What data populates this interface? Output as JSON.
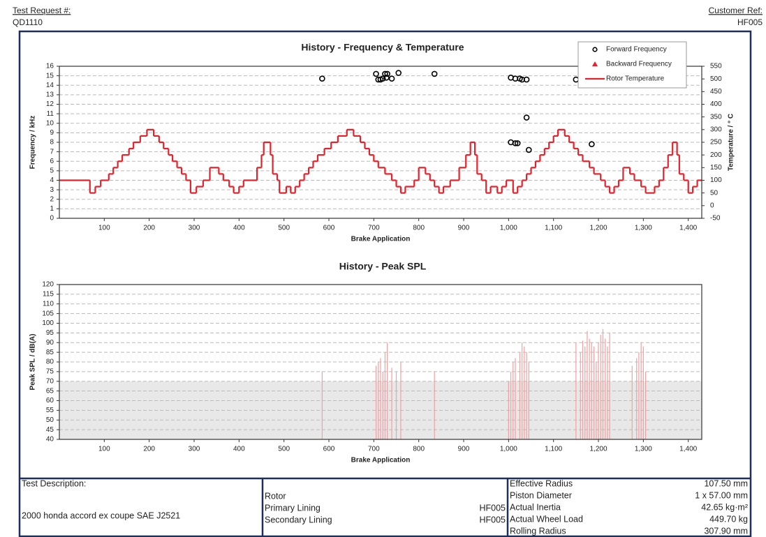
{
  "header": {
    "test_request_label": "Test Request #:",
    "test_request": "QD1110",
    "customer_ref_label": "Customer Ref:",
    "customer_ref": "HF005"
  },
  "chart_data": [
    {
      "type": "scatter",
      "title": "History - Frequency & Temperature",
      "x_label": "Brake Application",
      "y_label": "Frequency / kHz",
      "y2_label": "Temperature / ° C",
      "xlim": [
        0,
        1430
      ],
      "xticks": [
        100,
        200,
        300,
        400,
        500,
        600,
        700,
        800,
        900,
        {
          "value": 1000,
          "label": "1,000"
        },
        {
          "value": 1100,
          "label": "1,100"
        },
        {
          "value": 1200,
          "label": "1,200"
        },
        {
          "value": 1300,
          "label": "1,300"
        },
        {
          "value": 1400,
          "label": "1,400"
        }
      ],
      "ylim": [
        0,
        16
      ],
      "yticks": [
        0,
        1,
        2,
        3,
        4,
        5,
        6,
        7,
        8,
        9,
        10,
        11,
        12,
        13,
        14,
        15,
        16
      ],
      "y2lim": [
        -50,
        550
      ],
      "y2ticks": [
        -50,
        0,
        50,
        100,
        150,
        200,
        250,
        300,
        350,
        400,
        450,
        500,
        550
      ],
      "grid": true,
      "legend": "top-right",
      "series": [
        {
          "name": "Forward Frequency",
          "color": "#000000",
          "marker": "circle",
          "x": [
            585,
            705,
            710,
            715,
            720,
            725,
            728,
            730,
            740,
            755,
            835,
            1005,
            1015,
            1025,
            1030,
            1040,
            1150,
            1040,
            1005,
            1015,
            1020,
            1045,
            1185
          ],
          "values": [
            14.7,
            15.2,
            14.6,
            14.6,
            14.7,
            15.2,
            14.8,
            15.2,
            14.7,
            15.3,
            15.2,
            14.8,
            14.7,
            14.7,
            14.6,
            14.6,
            14.6,
            10.6,
            8.0,
            7.9,
            7.9,
            7.2,
            7.8
          ]
        },
        {
          "name": "Backward Frequency",
          "color": "#e8202a",
          "marker": "triangle",
          "x": [],
          "values": []
        },
        {
          "name": "Rotor Temperature",
          "color": "#e8202a",
          "marker": "step",
          "axis": "y2",
          "x": [
            0,
            68,
            80,
            92,
            110,
            120,
            130,
            140,
            155,
            165,
            180,
            195,
            210,
            222,
            232,
            243,
            252,
            262,
            272,
            282,
            292,
            305,
            320,
            335,
            355,
            365,
            378,
            388,
            400,
            410,
            440,
            450,
            455,
            470,
            475,
            485,
            490,
            505,
            515,
            525,
            535,
            545,
            555,
            565,
            575,
            590,
            605,
            620,
            640,
            655,
            670,
            680,
            690,
            700,
            710,
            725,
            740,
            750,
            760,
            770,
            790,
            800,
            815,
            825,
            835,
            845,
            855,
            870,
            890,
            905,
            915,
            925,
            930,
            940,
            950,
            960,
            975,
            985,
            995,
            1010,
            1020,
            1030,
            1040,
            1050,
            1060,
            1070,
            1080,
            1090,
            1100,
            1110,
            1125,
            1135,
            1145,
            1155,
            1165,
            1180,
            1190,
            1205,
            1215,
            1225,
            1235,
            1245,
            1255,
            1270,
            1280,
            1295,
            1305,
            1325,
            1335,
            1345,
            1355,
            1365,
            1375,
            1380,
            1390,
            1400,
            1410,
            1420
          ],
          "values": [
            100,
            50,
            75,
            100,
            125,
            150,
            175,
            200,
            225,
            250,
            275,
            300,
            275,
            250,
            225,
            200,
            175,
            150,
            125,
            100,
            50,
            75,
            100,
            150,
            125,
            100,
            75,
            50,
            75,
            100,
            150,
            200,
            250,
            200,
            125,
            100,
            50,
            75,
            50,
            75,
            100,
            125,
            150,
            175,
            200,
            225,
            250,
            275,
            300,
            275,
            250,
            225,
            200,
            175,
            150,
            125,
            100,
            75,
            50,
            75,
            100,
            150,
            125,
            100,
            75,
            50,
            75,
            100,
            150,
            200,
            250,
            200,
            125,
            100,
            50,
            75,
            50,
            75,
            100,
            50,
            75,
            100,
            125,
            150,
            175,
            200,
            225,
            250,
            275,
            300,
            275,
            250,
            225,
            200,
            175,
            150,
            125,
            100,
            75,
            50,
            75,
            100,
            150,
            125,
            100,
            75,
            50,
            75,
            100,
            150,
            200,
            250,
            200,
            125,
            100,
            50,
            75,
            100
          ]
        }
      ]
    },
    {
      "type": "bar",
      "title": "History - Peak SPL",
      "x_label": "Brake Application",
      "y_label": "Peak SPL / dB(A)",
      "xlim": [
        0,
        1430
      ],
      "xticks": [
        100,
        200,
        300,
        400,
        500,
        600,
        700,
        800,
        900,
        {
          "value": 1000,
          "label": "1,000"
        },
        {
          "value": 1100,
          "label": "1,100"
        },
        {
          "value": 1200,
          "label": "1,200"
        },
        {
          "value": 1300,
          "label": "1,300"
        },
        {
          "value": 1400,
          "label": "1,400"
        }
      ],
      "ylim": [
        40,
        120
      ],
      "yticks": [
        40,
        45,
        50,
        55,
        60,
        65,
        70,
        75,
        80,
        85,
        90,
        95,
        100,
        105,
        110,
        115,
        120
      ],
      "grid": true,
      "threshold": 70,
      "color": "#f2a0a0",
      "x": [
        585,
        705,
        710,
        715,
        720,
        725,
        730,
        740,
        750,
        760,
        835,
        1000,
        1005,
        1010,
        1015,
        1025,
        1030,
        1035,
        1040,
        1045,
        1150,
        1160,
        1165,
        1170,
        1175,
        1180,
        1185,
        1190,
        1195,
        1200,
        1205,
        1210,
        1215,
        1220,
        1225,
        1275,
        1285,
        1290,
        1295,
        1300,
        1305
      ],
      "values": [
        75,
        78,
        80,
        82,
        75,
        85,
        90,
        77,
        75,
        80,
        75,
        70,
        75,
        80,
        82,
        85,
        90,
        88,
        85,
        80,
        90,
        85,
        91,
        88,
        96,
        92,
        90,
        88,
        80,
        90,
        94,
        97,
        92,
        88,
        95,
        78,
        82,
        85,
        90,
        88,
        75
      ]
    }
  ],
  "footer": {
    "description_label": "Test Description:",
    "description": "2000 honda accord ex coupe SAE J2521",
    "rotor": "Rotor",
    "primary_lining": "Primary Lining",
    "primary_lining_value": "HF005",
    "secondary_lining": "Secondary Lining",
    "secondary_lining_value": "HF005",
    "params": [
      [
        "Effective Radius",
        "107.50 mm"
      ],
      [
        "Piston Diameter",
        "1 x 57.00 mm"
      ],
      [
        "Actual Inertia",
        "42.65 kg·m²"
      ],
      [
        "Actual Wheel Load",
        "449.70 kg"
      ],
      [
        "Rolling Radius",
        "307.90 mm"
      ]
    ]
  }
}
